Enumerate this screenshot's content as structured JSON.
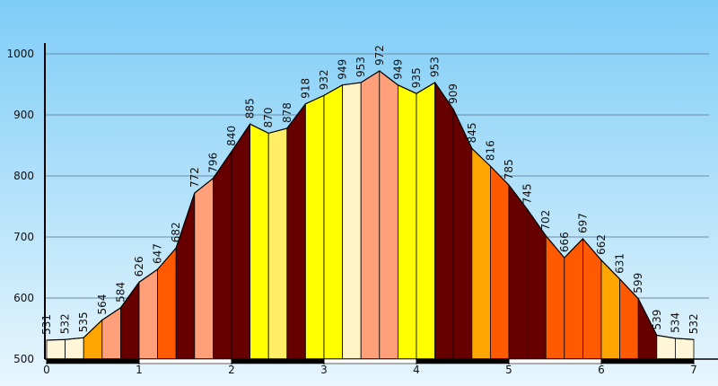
{
  "chart_data": {
    "type": "area",
    "title": "",
    "xlabel": "",
    "ylabel": "",
    "xlim": [
      0,
      7
    ],
    "ylim": [
      500,
      1000
    ],
    "grid": true,
    "x_ticks": [
      "0",
      "1",
      "2",
      "3",
      "4",
      "5",
      "6",
      "7"
    ],
    "y_ticks": [
      "500",
      "600",
      "700",
      "800",
      "900",
      "1000"
    ],
    "background_top": "#7ecdf7",
    "background_bottom": "#e8f6fd",
    "x": [
      0,
      0.2,
      0.4,
      0.6,
      0.8,
      1.0,
      1.2,
      1.4,
      1.6,
      1.8,
      2.0,
      2.2,
      2.4,
      2.6,
      2.8,
      3.0,
      3.2,
      3.4,
      3.6,
      3.8,
      4.0,
      4.2,
      4.4,
      4.6,
      4.8,
      5.0,
      5.2,
      5.4,
      5.6,
      5.8,
      6.0,
      6.2,
      6.4,
      6.6,
      6.8,
      7.0
    ],
    "values": [
      531,
      532,
      535,
      564,
      584,
      626,
      647,
      682,
      772,
      796,
      840,
      885,
      870,
      878,
      918,
      932,
      949,
      953,
      972,
      949,
      935,
      953,
      909,
      845,
      816,
      785,
      745,
      702,
      666,
      697,
      662,
      631,
      599,
      539,
      534,
      532
    ],
    "segment_colors": [
      "#fff6d8",
      "#fff6d8",
      "#ffa500",
      "#ffa07a",
      "#660000",
      "#ffa07a",
      "#ff5a00",
      "#660000",
      "#ffa07a",
      "#660000",
      "#660000",
      "#ffff00",
      "#ffee66",
      "#660000",
      "#ffff00",
      "#ffff00",
      "#fff3c6",
      "#ffa07a",
      "#ffa07a",
      "#ffff00",
      "#ffff00",
      "#660000",
      "#660000",
      "#ffa500",
      "#ff5a00",
      "#660000",
      "#660000",
      "#ff5a00",
      "#ff5a00",
      "#ff5a00",
      "#ffa500",
      "#ff5a00",
      "#660000",
      "#fff6d8",
      "#fff6d8"
    ]
  }
}
